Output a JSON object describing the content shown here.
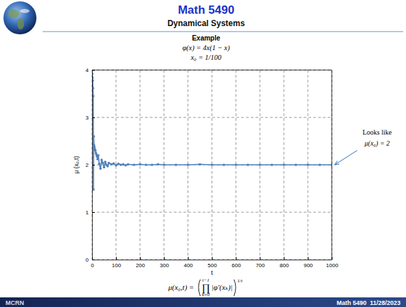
{
  "slide": {
    "title": "Math 5490",
    "subtitle": "Dynamical Systems",
    "heading": "Example",
    "map": "φ(x) = 4x(1 − x)",
    "initial": "x₀ = 1/100",
    "formula": {
      "lhs": "μ(x₀,t) =",
      "product": "∏",
      "upper": "t−1",
      "lower": "k=0",
      "body": "|φ′(xₖ)|",
      "exponent": "1/t"
    },
    "logo": "MCRN",
    "footer": "Math 5490  11/28/2023"
  },
  "chart_data": {
    "type": "line",
    "x_label": "t",
    "y_label": "μ (x₀,t)",
    "x": [
      1,
      2,
      3,
      4,
      5,
      6,
      7,
      8,
      10,
      12,
      14,
      16,
      18,
      20,
      23,
      26,
      30,
      35,
      40,
      45,
      50,
      55,
      60,
      65,
      70,
      80,
      90,
      100,
      110,
      120,
      130,
      140,
      150,
      175,
      200,
      225,
      250,
      275,
      300,
      350,
      400,
      450,
      500,
      550,
      600,
      650,
      700,
      750,
      800,
      850,
      900,
      950,
      1000
    ],
    "values": [
      3.92,
      3.84,
      3.78,
      3.62,
      3.45,
      1.48,
      2.6,
      2.42,
      2.38,
      2.33,
      2.3,
      2.25,
      2.22,
      2.18,
      2.12,
      2.2,
      2.02,
      1.92,
      2.1,
      2.04,
      1.95,
      2.06,
      2.0,
      1.97,
      2.04,
      2.01,
      2.03,
      1.99,
      2.02,
      2.0,
      2.01,
      1.99,
      2.01,
      2.0,
      2.01,
      2.0,
      2.0,
      2.01,
      2.0,
      2.0,
      2.0,
      2.01,
      2.0,
      2.0,
      2.0,
      2.0,
      2.0,
      2.0,
      2.0,
      2.0,
      2.0,
      2.0,
      2.0
    ],
    "color": "#4f81bd",
    "marker": "dot",
    "line_style": "solid",
    "xlim": [
      0,
      1000
    ],
    "xticks": [
      0,
      100,
      200,
      300,
      400,
      500,
      600,
      700,
      800,
      900,
      1000
    ],
    "ylim": [
      0,
      4
    ],
    "yticks": [
      0,
      1,
      2,
      3,
      4
    ],
    "grid": true,
    "annotations": [
      "Looks like",
      "μ(x₀) = 2"
    ]
  }
}
